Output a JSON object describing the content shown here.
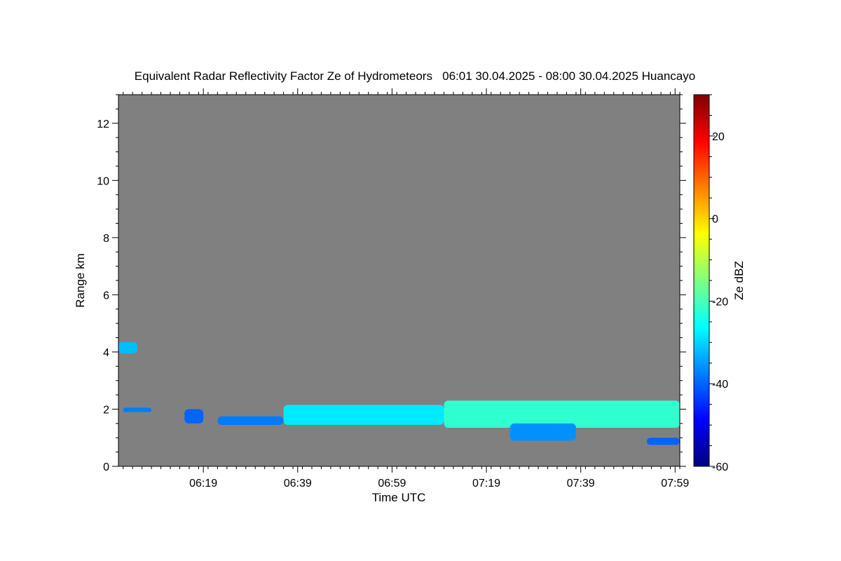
{
  "chart_data": {
    "type": "heatmap",
    "title": "Equivalent Radar Reflectivity Factor Ze of Hydrometeors   06:01 30.04.2025 - 08:00 30.04.2025 Huancayo",
    "xlabel": "Time UTC",
    "ylabel": "Range km",
    "colorbar_label": "Ze dBZ",
    "background_color": "#808080",
    "x_range_minutes_utc": [
      361,
      480
    ],
    "x_tick_labels": [
      "06:19",
      "06:39",
      "06:59",
      "07:19",
      "07:39",
      "07:59"
    ],
    "x_tick_minutes_utc": [
      379,
      399,
      419,
      439,
      459,
      479
    ],
    "ylim": [
      0,
      13
    ],
    "y_ticks": [
      0,
      2,
      4,
      6,
      8,
      10,
      12
    ],
    "y_tick_labels": [
      "0",
      "2",
      "4",
      "6",
      "8",
      "10",
      "12"
    ],
    "colorbar_range": [
      -60,
      30
    ],
    "colorbar_ticks": [
      20,
      0,
      -20,
      -40,
      -60
    ],
    "colorbar_tick_labels": [
      "20",
      "0",
      "-20",
      "-40",
      "-60"
    ],
    "colormap": [
      "#000080",
      "#0000ff",
      "#0080ff",
      "#00ffff",
      "#80ff80",
      "#ffff00",
      "#ff8000",
      "#ff0000",
      "#800000"
    ],
    "echo_regions": [
      {
        "name": "upper-patch",
        "time_start_min": 361,
        "time_end_min": 365,
        "range_bottom_km": 3.95,
        "range_top_km": 4.35,
        "ze_dbz": -32
      },
      {
        "name": "low-layer-early",
        "time_start_min": 362,
        "time_end_min": 368,
        "range_bottom_km": 1.9,
        "range_top_km": 2.05,
        "ze_dbz": -38
      },
      {
        "name": "low-layer-fragments",
        "time_start_min": 375,
        "time_end_min": 379,
        "range_bottom_km": 1.5,
        "range_top_km": 2.0,
        "ze_dbz": -40
      },
      {
        "name": "main-layer-west",
        "time_start_min": 382,
        "time_end_min": 396,
        "range_bottom_km": 1.45,
        "range_top_km": 1.75,
        "ze_dbz": -38
      },
      {
        "name": "main-layer-center",
        "time_start_min": 396,
        "time_end_min": 430,
        "range_bottom_km": 1.45,
        "range_top_km": 2.15,
        "ze_dbz": -28
      },
      {
        "name": "main-layer-east",
        "time_start_min": 430,
        "time_end_min": 480,
        "range_bottom_km": 1.35,
        "range_top_km": 2.3,
        "ze_dbz": -22
      },
      {
        "name": "virga-07-30",
        "time_start_min": 444,
        "time_end_min": 458,
        "range_bottom_km": 0.9,
        "range_top_km": 1.5,
        "ze_dbz": -36
      },
      {
        "name": "low-patch-07-55",
        "time_start_min": 473,
        "time_end_min": 480,
        "range_bottom_km": 0.75,
        "range_top_km": 1.0,
        "ze_dbz": -40
      }
    ]
  }
}
